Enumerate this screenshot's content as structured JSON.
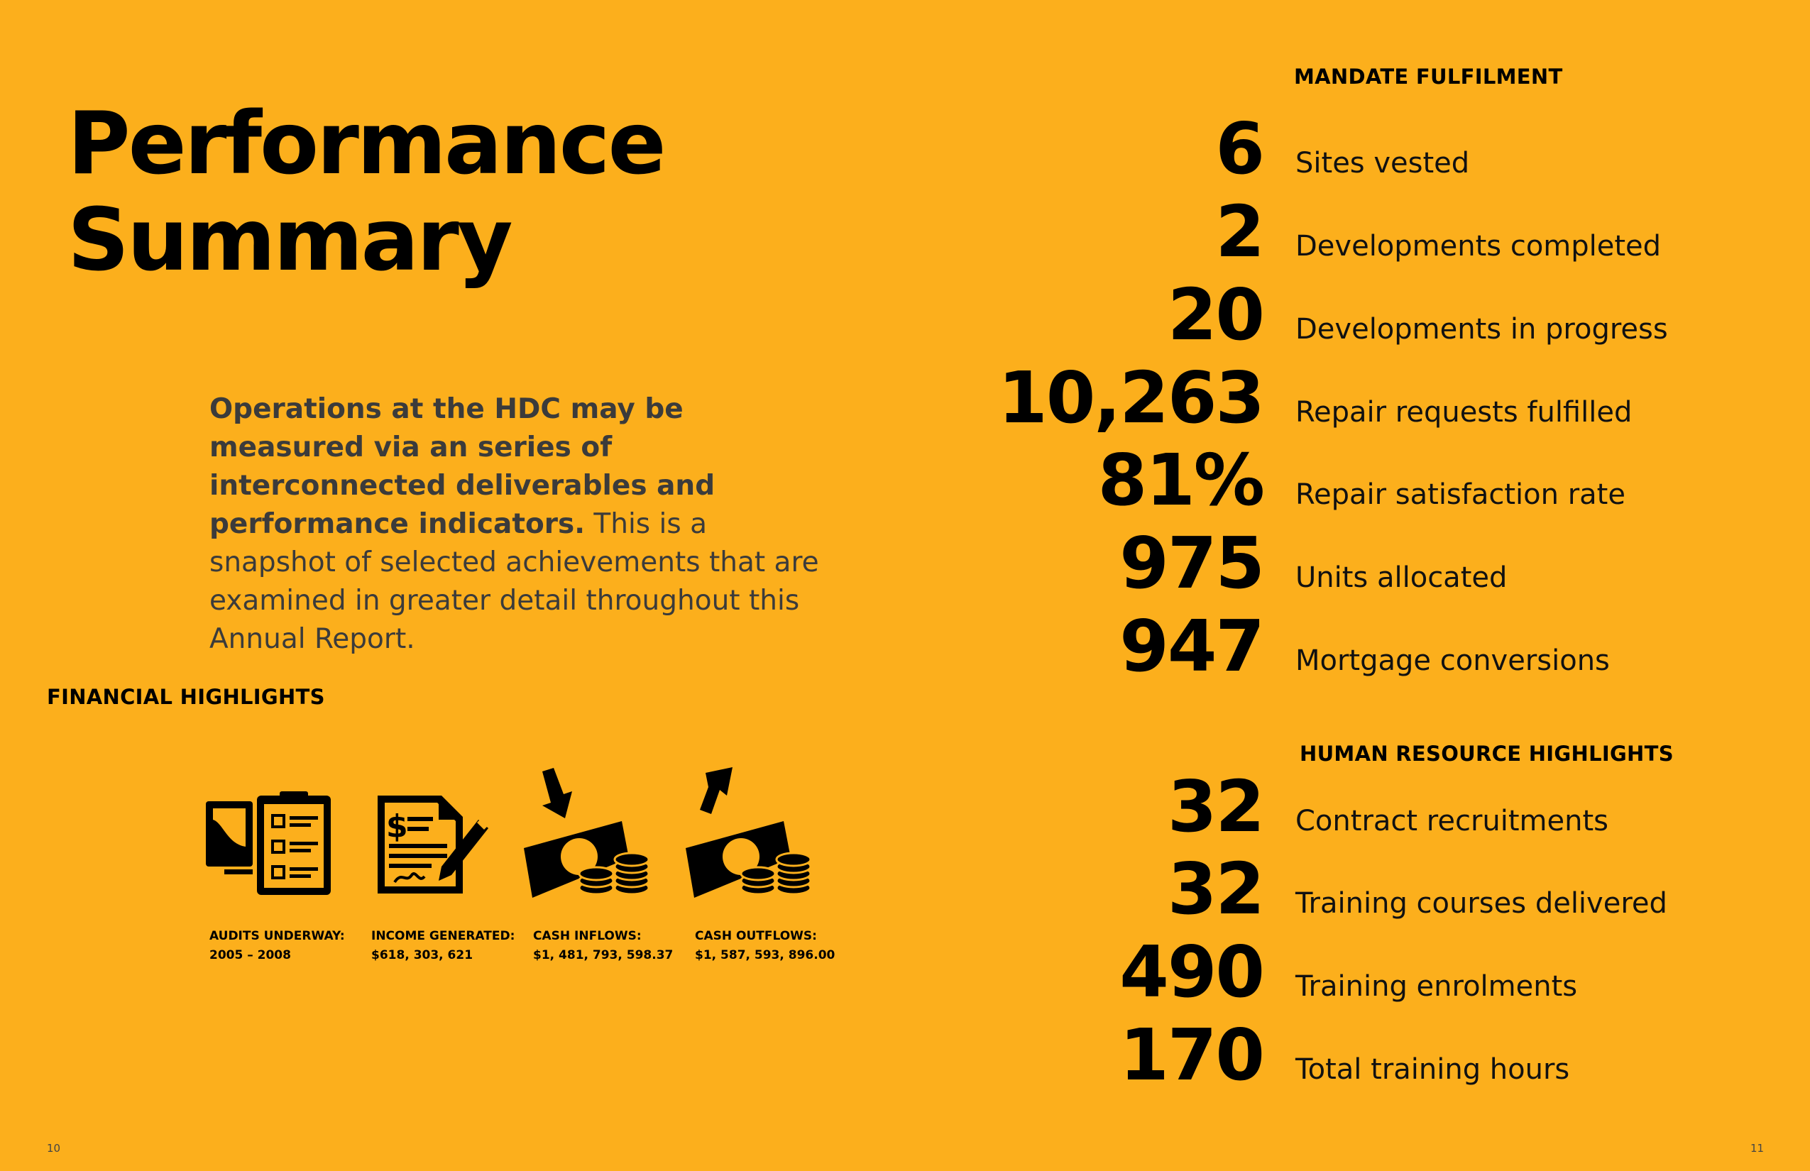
{
  "title": {
    "line1": "Performance",
    "line2": "Summary"
  },
  "intro": {
    "bold": "Operations at the HDC may be measured via an series of interconnected deliverables and performance indicators.",
    "regular": "This is a snapshot of selected achievements that are examined in greater detail throughout this Annual Report."
  },
  "financial": {
    "heading": "FINANCIAL HIGHLIGHTS",
    "items": [
      {
        "icon": "audit-clipboard-icon",
        "label": "AUDITS UNDERWAY:",
        "value": "2005 – 2008"
      },
      {
        "icon": "invoice-signature-icon",
        "label": "INCOME GENERATED:",
        "value": "$618, 303, 621"
      },
      {
        "icon": "cash-inflow-icon",
        "label": "CASH INFLOWS:",
        "value": "$1, 481, 793, 598.37"
      },
      {
        "icon": "cash-outflow-icon",
        "label": "CASH OUTFLOWS:",
        "value": "$1, 587, 593, 896.00"
      }
    ]
  },
  "mandate": {
    "heading": "MANDATE FULFILMENT",
    "stats": [
      {
        "value": "6",
        "label": "Sites vested"
      },
      {
        "value": "2",
        "label": "Developments completed"
      },
      {
        "value": "20",
        "label": "Developments in progress"
      },
      {
        "value": "10,263",
        "label": "Repair requests fulfilled"
      },
      {
        "value": "81%",
        "label": "Repair satisfaction rate"
      },
      {
        "value": "975",
        "label": "Units allocated"
      },
      {
        "value": "947",
        "label": "Mortgage conversions"
      }
    ]
  },
  "hr": {
    "heading": "HUMAN RESOURCE  HIGHLIGHTS",
    "stats": [
      {
        "value": "32",
        "label": "Contract recruitments"
      },
      {
        "value": "32",
        "label": "Training courses delivered"
      },
      {
        "value": "490",
        "label": "Training enrolments"
      },
      {
        "value": "170",
        "label": "Total training hours"
      }
    ]
  },
  "pages": {
    "left": "10",
    "right": "11"
  }
}
